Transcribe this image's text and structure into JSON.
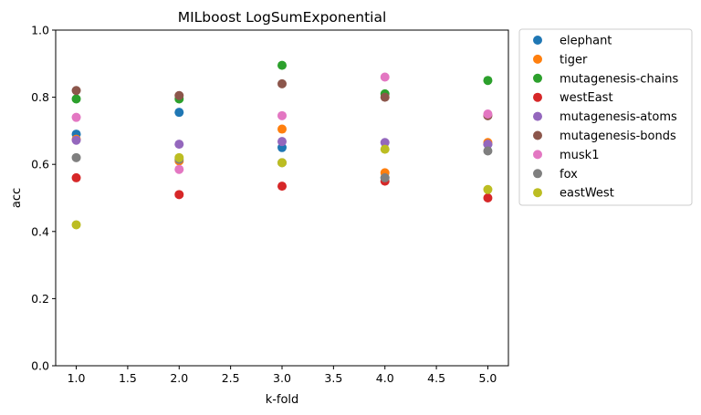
{
  "chart_data": {
    "type": "scatter",
    "title": "MILboost LogSumExponential",
    "xlabel": "k-fold",
    "ylabel": "acc",
    "xlim": [
      0.8,
      5.2
    ],
    "ylim": [
      0.0,
      1.0
    ],
    "xticks": [
      1.0,
      1.5,
      2.0,
      2.5,
      3.0,
      3.5,
      4.0,
      4.5,
      5.0
    ],
    "xtick_labels": [
      "1.0",
      "1.5",
      "2.0",
      "2.5",
      "3.0",
      "3.5",
      "4.0",
      "4.5",
      "5.0"
    ],
    "yticks": [
      0.0,
      0.2,
      0.4,
      0.6,
      0.8,
      1.0
    ],
    "ytick_labels": [
      "0.0",
      "0.2",
      "0.4",
      "0.6",
      "0.8",
      "1.0"
    ],
    "grid": false,
    "legend_position": "outside-right-top",
    "x": [
      1,
      2,
      3,
      4,
      5
    ],
    "series": [
      {
        "name": "elephant",
        "color": "#1f77b4",
        "values": [
          0.69,
          0.755,
          0.65,
          0.56,
          0.66
        ]
      },
      {
        "name": "tiger",
        "color": "#ff7f0e",
        "values": [
          0.675,
          0.61,
          0.705,
          0.575,
          0.665
        ]
      },
      {
        "name": "mutagenesis-chains",
        "color": "#2ca02c",
        "values": [
          0.795,
          0.795,
          0.895,
          0.81,
          0.85
        ]
      },
      {
        "name": "westEast",
        "color": "#d62728",
        "values": [
          0.56,
          0.51,
          0.535,
          0.55,
          0.5
        ]
      },
      {
        "name": "mutagenesis-atoms",
        "color": "#9467bd",
        "values": [
          0.672,
          0.66,
          0.668,
          0.665,
          0.66
        ]
      },
      {
        "name": "mutagenesis-bonds",
        "color": "#8c564b",
        "values": [
          0.82,
          0.805,
          0.84,
          0.8,
          0.745
        ]
      },
      {
        "name": "musk1",
        "color": "#e377c2",
        "values": [
          0.74,
          0.585,
          0.745,
          0.86,
          0.75
        ]
      },
      {
        "name": "fox",
        "color": "#7f7f7f",
        "values": [
          0.62,
          0.615,
          0.605,
          0.56,
          0.64
        ]
      },
      {
        "name": "eastWest",
        "color": "#bcbd22",
        "values": [
          0.42,
          0.62,
          0.605,
          0.645,
          0.525
        ]
      }
    ]
  }
}
